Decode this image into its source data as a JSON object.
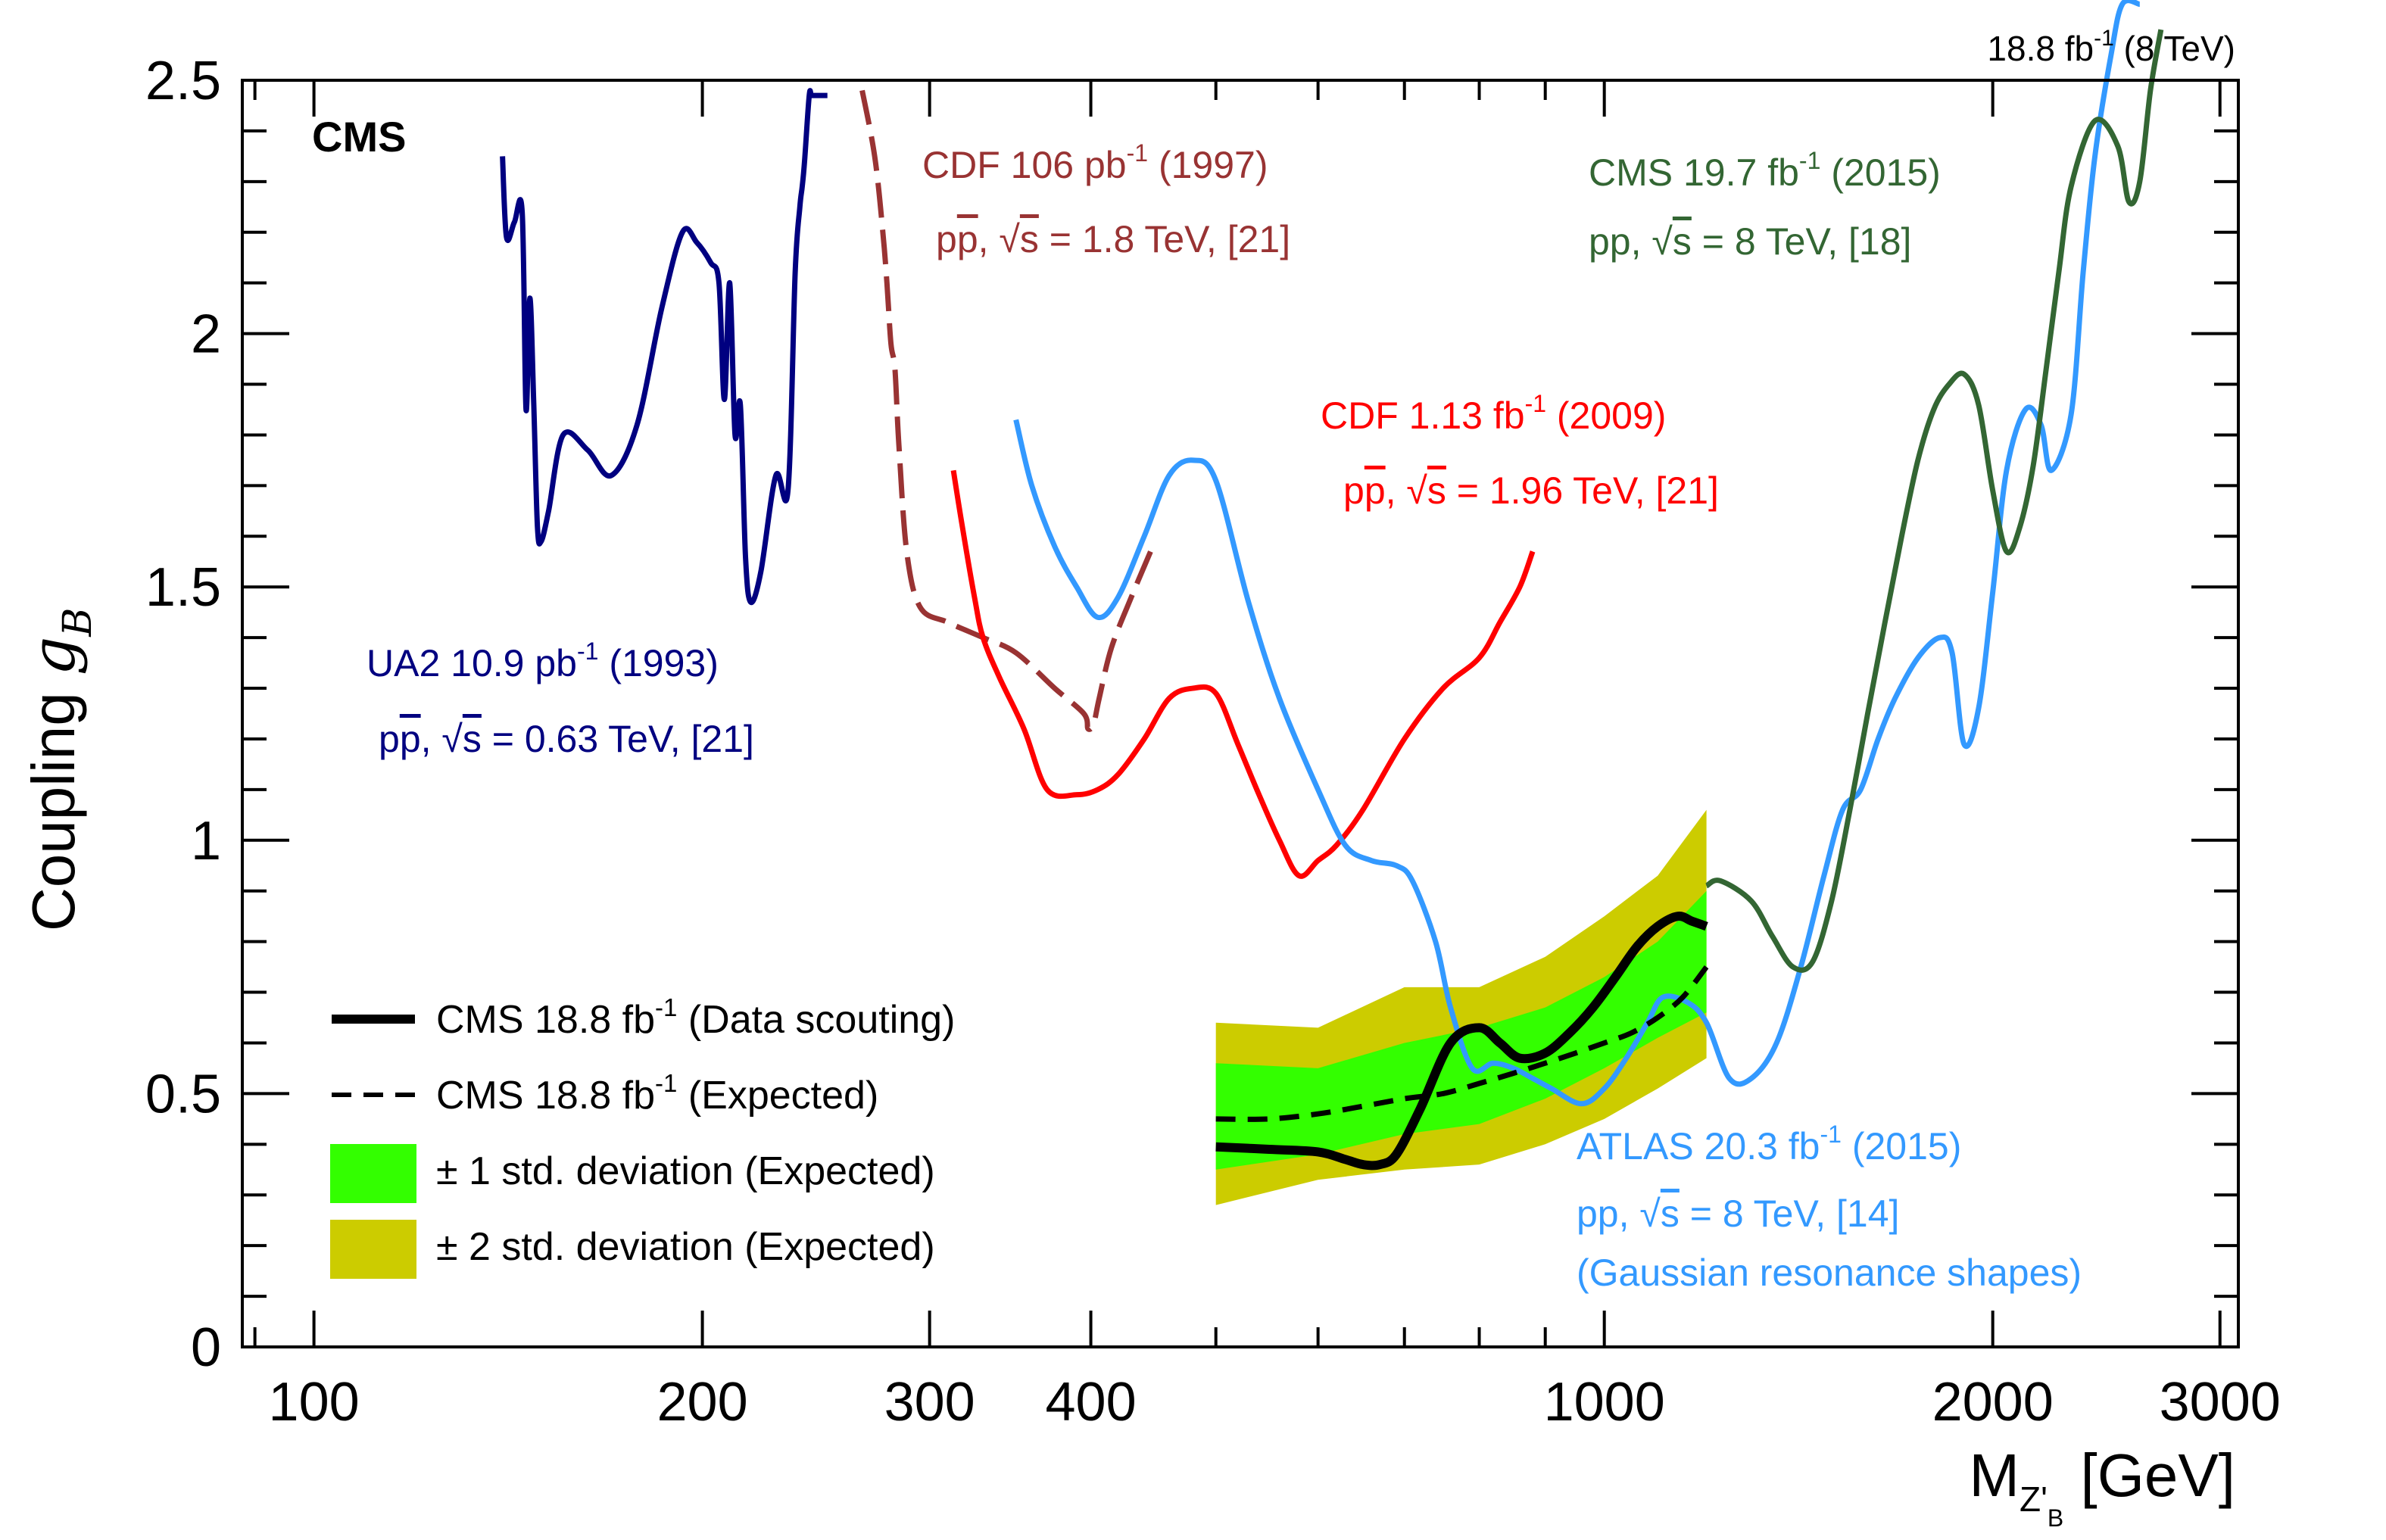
{
  "chart_data": {
    "type": "line",
    "header_right": {
      "base": "18.8 fb",
      "sup": "-1",
      "tail": " (8 TeV)"
    },
    "badge": "CMS",
    "xlabel": {
      "main": "M",
      "sub1": "Z'",
      "sub2": "B",
      "unit": " [GeV]"
    },
    "ylabel": {
      "main": "Coupling ",
      "sym": "g",
      "sub": "B"
    },
    "x_scale": "log",
    "xlim": [
      88,
      3100
    ],
    "ylim": [
      0,
      2.5
    ],
    "x_ticks": [
      {
        "v": 100,
        "label": "100"
      },
      {
        "v": 200,
        "label": "200"
      },
      {
        "v": 300,
        "label": "300"
      },
      {
        "v": 400,
        "label": "400"
      },
      {
        "v": 1000,
        "label": "1000"
      },
      {
        "v": 2000,
        "label": "2000"
      },
      {
        "v": 3000,
        "label": "3000"
      }
    ],
    "x_minor": [
      90,
      500,
      600,
      700,
      800,
      900
    ],
    "y_ticks": [
      {
        "v": 0,
        "label": "0"
      },
      {
        "v": 0.5,
        "label": "0.5"
      },
      {
        "v": 1,
        "label": "1"
      },
      {
        "v": 1.5,
        "label": "1.5"
      },
      {
        "v": 2,
        "label": "2"
      },
      {
        "v": 2.5,
        "label": "2.5"
      }
    ],
    "y_minor_step": 0.1,
    "band_2sigma": {
      "color": "#cccc00",
      "x": [
        500,
        600,
        700,
        800,
        900,
        1000,
        1100,
        1200
      ],
      "lo": [
        0.28,
        0.33,
        0.35,
        0.36,
        0.4,
        0.45,
        0.51,
        0.57
      ],
      "hi": [
        0.64,
        0.63,
        0.71,
        0.71,
        0.77,
        0.85,
        0.93,
        1.06
      ]
    },
    "band_1sigma": {
      "color": "#33ff00",
      "x": [
        500,
        600,
        700,
        800,
        900,
        1000,
        1100,
        1200
      ],
      "lo": [
        0.35,
        0.38,
        0.42,
        0.44,
        0.49,
        0.55,
        0.61,
        0.66
      ],
      "hi": [
        0.56,
        0.55,
        0.6,
        0.63,
        0.67,
        0.73,
        0.8,
        0.9
      ]
    },
    "series": [
      {
        "name": "ua2",
        "color": "#000080",
        "dash": "",
        "x": [
          140,
          141,
          143,
          145,
          146,
          147,
          148,
          149,
          150,
          152,
          156,
          163,
          170,
          178,
          186,
          193,
          198,
          203,
          206,
          208,
          210,
          212,
          214,
          216,
          218,
          222,
          228,
          233,
          236,
          238,
          239,
          240,
          242,
          243,
          245,
          247,
          250
        ],
        "y": [
          2.35,
          2.19,
          2.22,
          2.24,
          1.85,
          2.07,
          1.87,
          1.62,
          1.59,
          1.65,
          1.8,
          1.77,
          1.72,
          1.82,
          2.05,
          2.2,
          2.18,
          2.14,
          2.1,
          1.87,
          2.1,
          1.8,
          1.86,
          1.56,
          1.47,
          1.53,
          1.72,
          1.69,
          2.12,
          2.25,
          2.29,
          2.34,
          2.47,
          2.47,
          2.47,
          2.47,
          2.47
        ]
      },
      {
        "name": "cdf1997",
        "color": "#993333",
        "dash": "46 16",
        "x": [
          266,
          272,
          276,
          278,
          280,
          282,
          284,
          288,
          295,
          310,
          330,
          350,
          375,
          395,
          398,
          402,
          406,
          415,
          430,
          445
        ],
        "y": [
          2.48,
          2.35,
          2.2,
          2.1,
          1.98,
          1.93,
          1.78,
          1.57,
          1.46,
          1.43,
          1.4,
          1.37,
          1.3,
          1.25,
          1.22,
          1.23,
          1.28,
          1.38,
          1.48,
          1.57
        ]
      },
      {
        "name": "cdf2009",
        "color": "#ff0000",
        "dash": "",
        "x": [
          313,
          318,
          325,
          330,
          340,
          355,
          370,
          390,
          405,
          420,
          440,
          460,
          480,
          500,
          520,
          540,
          560,
          580,
          600,
          620,
          650,
          700,
          750,
          800,
          830,
          860,
          880
        ],
        "y": [
          1.73,
          1.62,
          1.48,
          1.4,
          1.32,
          1.22,
          1.1,
          1.09,
          1.1,
          1.13,
          1.2,
          1.28,
          1.3,
          1.29,
          1.19,
          1.09,
          1.0,
          0.93,
          0.96,
          0.99,
          1.06,
          1.2,
          1.3,
          1.36,
          1.43,
          1.5,
          1.57
        ]
      },
      {
        "name": "atlas",
        "color": "#3399ff",
        "dash": "",
        "x": [
          350,
          360,
          375,
          390,
          405,
          420,
          440,
          460,
          480,
          500,
          530,
          560,
          600,
          630,
          660,
          690,
          710,
          740,
          760,
          790,
          820,
          850,
          880,
          910,
          960,
          1000,
          1040,
          1080,
          1110,
          1160,
          1200,
          1250,
          1300,
          1360,
          1420,
          1480,
          1530,
          1580,
          1630,
          1680,
          1750,
          1820,
          1860,
          1900,
          1950,
          2000,
          2050,
          2120,
          2180,
          2220,
          2300,
          2350,
          2400,
          2470,
          2520,
          2600
        ],
        "y": [
          1.83,
          1.7,
          1.58,
          1.5,
          1.44,
          1.48,
          1.6,
          1.72,
          1.75,
          1.71,
          1.47,
          1.28,
          1.1,
          0.99,
          0.96,
          0.95,
          0.92,
          0.8,
          0.67,
          0.55,
          0.56,
          0.55,
          0.53,
          0.51,
          0.48,
          0.51,
          0.57,
          0.64,
          0.69,
          0.68,
          0.64,
          0.53,
          0.53,
          0.6,
          0.75,
          0.93,
          1.06,
          1.1,
          1.2,
          1.28,
          1.36,
          1.4,
          1.37,
          1.19,
          1.26,
          1.49,
          1.73,
          1.85,
          1.82,
          1.73,
          1.84,
          2.12,
          2.35,
          2.55,
          2.65,
          2.65
        ]
      },
      {
        "name": "cms2015",
        "color": "#336633",
        "dash": "",
        "x": [
          1200,
          1230,
          1300,
          1350,
          1400,
          1450,
          1500,
          1550,
          1600,
          1650,
          1700,
          1750,
          1800,
          1850,
          1900,
          1950,
          2000,
          2050,
          2100,
          2150,
          2200,
          2250,
          2300,
          2400,
          2500,
          2550,
          2600,
          2650,
          2700
        ],
        "y": [
          0.91,
          0.92,
          0.88,
          0.81,
          0.75,
          0.76,
          0.88,
          1.06,
          1.25,
          1.43,
          1.6,
          1.75,
          1.85,
          1.9,
          1.92,
          1.86,
          1.69,
          1.57,
          1.62,
          1.74,
          1.93,
          2.12,
          2.29,
          2.42,
          2.37,
          2.26,
          2.3,
          2.48,
          2.6
        ]
      },
      {
        "name": "cms_expected",
        "color": "#000000",
        "dash": "26 16",
        "x": [
          500,
          550,
          600,
          650,
          700,
          750,
          800,
          850,
          900,
          950,
          1000,
          1050,
          1100,
          1150,
          1200
        ],
        "y": [
          0.45,
          0.45,
          0.46,
          0.475,
          0.49,
          0.5,
          0.52,
          0.54,
          0.56,
          0.58,
          0.6,
          0.62,
          0.65,
          0.69,
          0.75
        ]
      },
      {
        "name": "cms_observed",
        "color": "#000000",
        "dash": "",
        "x": [
          500,
          550,
          600,
          630,
          650,
          670,
          690,
          720,
          760,
          800,
          830,
          860,
          900,
          940,
          980,
          1020,
          1060,
          1100,
          1140,
          1170,
          1200
        ],
        "y": [
          0.395,
          0.39,
          0.385,
          0.37,
          0.36,
          0.36,
          0.38,
          0.47,
          0.6,
          0.63,
          0.6,
          0.57,
          0.58,
          0.62,
          0.67,
          0.73,
          0.79,
          0.83,
          0.85,
          0.84,
          0.83
        ]
      }
    ],
    "annotations": {
      "ua2": {
        "color": "#000080",
        "l1": "UA2 10.9 pb",
        "l1sup": "-1",
        "l1tail": " (1993)",
        "l2pre": "p",
        "l2bar": "p",
        "l2mid": ", ",
        "l2root": "√",
        "l2s": "s",
        "l2tail": " = 0.63 TeV, [21]"
      },
      "cdf1997": {
        "color": "#993333",
        "l1": "CDF 106 pb",
        "l1sup": "-1",
        "l1tail": " (1997)",
        "l2pre": "p",
        "l2bar": "p",
        "l2mid": ", ",
        "l2root": "√",
        "l2s": "s",
        "l2tail": " = 1.8 TeV, [21]"
      },
      "cdf2009": {
        "color": "#ff0000",
        "l1": "CDF 1.13 fb",
        "l1sup": "-1",
        "l1tail": " (2009)",
        "l2pre": "p",
        "l2bar": "p",
        "l2mid": ", ",
        "l2root": "√",
        "l2s": "s",
        "l2tail": " = 1.96 TeV, [21]"
      },
      "cms2015": {
        "color": "#336633",
        "l1": "CMS 19.7 fb",
        "l1sup": "-1",
        "l1tail": " (2015)",
        "l2pre": "pp, ",
        "l2root": "√",
        "l2s": "s",
        "l2tail": " = 8 TeV, [18]"
      },
      "atlas": {
        "color": "#3399ff",
        "l1": "ATLAS 20.3 fb",
        "l1sup": "-1",
        "l1tail": " (2015)",
        "l2pre": "pp, ",
        "l2root": "√",
        "l2s": "s",
        "l2tail": " = 8 TeV, [14]",
        "l3": "(Gaussian resonance shapes)"
      }
    },
    "legend": {
      "position": "bottom-left",
      "entries": [
        {
          "kind": "line",
          "color": "#000000",
          "text": "CMS 18.8 fb",
          "sup": "-1",
          "tail": " (Data scouting)"
        },
        {
          "kind": "dash",
          "color": "#000000",
          "text": "CMS 18.8 fb",
          "sup": "-1",
          "tail": " (Expected)"
        },
        {
          "kind": "box",
          "color": "#33ff00",
          "text": "± 1 std. deviation (Expected)"
        },
        {
          "kind": "box",
          "color": "#cccc00",
          "text": "± 2 std. deviation (Expected)"
        }
      ]
    }
  }
}
